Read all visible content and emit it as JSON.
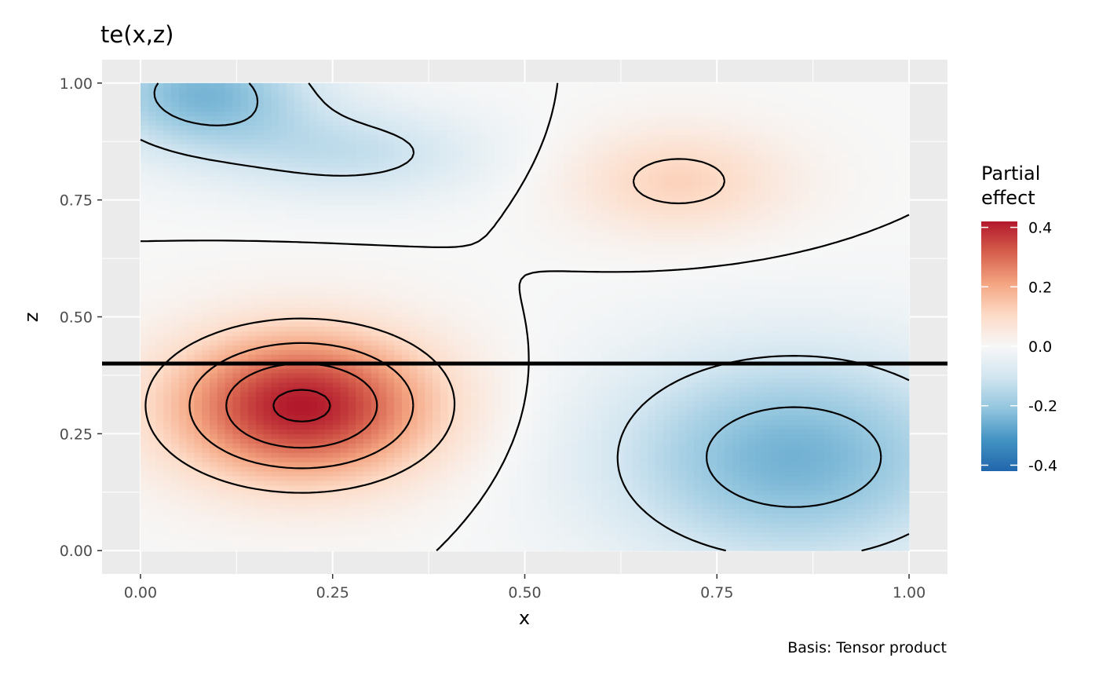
{
  "chart_data": {
    "type": "heatmap",
    "title": "te(x,z)",
    "xlabel": "x",
    "ylabel": "z",
    "caption": "Basis: Tensor product",
    "xlim": [
      -0.05,
      1.05
    ],
    "ylim": [
      -0.05,
      1.05
    ],
    "x_ticks": [
      0.0,
      0.25,
      0.5,
      0.75,
      1.0
    ],
    "x_tick_labels": [
      "0.00",
      "0.25",
      "0.50",
      "0.75",
      "1.00"
    ],
    "y_ticks": [
      0.0,
      0.25,
      0.5,
      0.75,
      1.0
    ],
    "y_tick_labels": [
      "0.00",
      "0.25",
      "0.50",
      "0.75",
      "1.00"
    ],
    "legend": {
      "title_lines": [
        "Partial",
        "effect"
      ],
      "range": [
        -0.42,
        0.42
      ],
      "ticks": [
        0.4,
        0.2,
        0.0,
        -0.2,
        -0.4
      ],
      "tick_labels": [
        "0.4",
        "0.2",
        "0.0",
        "-0.2",
        "-0.4"
      ],
      "colors": [
        "#2166ac",
        "#4393c3",
        "#92c5de",
        "#d1e5f0",
        "#f7f7f7",
        "#fddbc7",
        "#f4a582",
        "#d6604d",
        "#b2182b"
      ],
      "placement": "right"
    },
    "surface": {
      "description": "tensor product smooth partial effect surface",
      "extrema": [
        {
          "x": 0.21,
          "z": 0.31,
          "value": 0.42
        },
        {
          "x": 0.7,
          "z": 0.79,
          "value": 0.12
        },
        {
          "x": 0.08,
          "z": 0.98,
          "value": -0.24
        },
        {
          "x": 0.28,
          "z": 0.85,
          "value": -0.12
        },
        {
          "x": 0.85,
          "z": 0.2,
          "value": -0.25
        }
      ],
      "contour_levels": [
        -0.2,
        -0.1,
        0.0,
        0.1,
        0.2,
        0.3,
        0.4
      ]
    },
    "reference_line": {
      "orientation": "horizontal",
      "z": 0.4,
      "color": "#000000"
    }
  }
}
